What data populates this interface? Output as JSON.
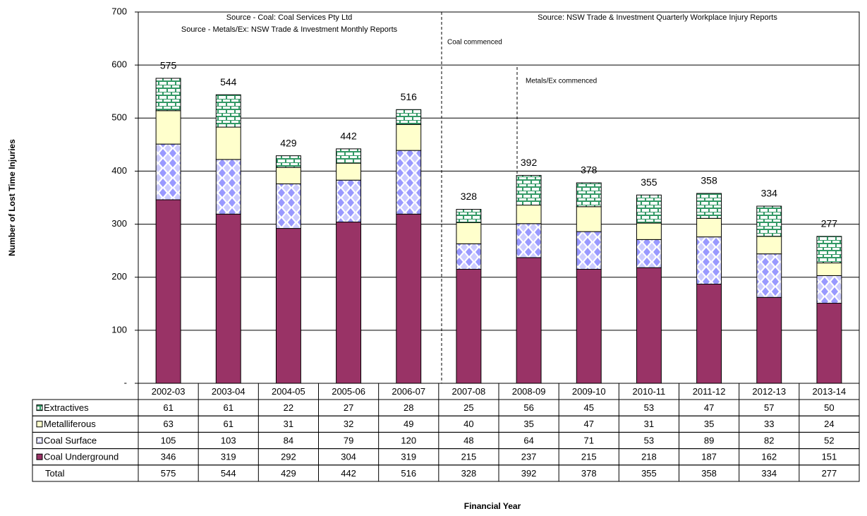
{
  "chart_data": {
    "type": "stacked-bar",
    "y_label": "Number of Lost Time Injuries",
    "x_label": "Financial Year",
    "annotations": [
      "Source - Coal:  Coal Services Pty Ltd",
      "Source - Metals/Ex:  NSW Trade & Investment Monthly Reports",
      "Source:  NSW Trade & Investment  Quarterly Workplace Injury Reports",
      "Coal commenced",
      "Metals/Ex commenced"
    ],
    "categories": [
      "2002-03",
      "2003-04",
      "2004-05",
      "2005-06",
      "2006-07",
      "2007-08",
      "2008-09",
      "2009-10",
      "2010-11",
      "2011-12",
      "2012-13",
      "2013-14"
    ],
    "series": [
      {
        "name": "Coal Underground",
        "color": "#993366",
        "pattern": "solid",
        "values": [
          346,
          319,
          292,
          304,
          319,
          215,
          237,
          215,
          218,
          187,
          162,
          151
        ]
      },
      {
        "name": "Coal Surface",
        "color": "#9999ff",
        "pattern": "diamond",
        "values": [
          105,
          103,
          84,
          79,
          120,
          48,
          64,
          71,
          53,
          89,
          82,
          52
        ]
      },
      {
        "name": "Metalliferous",
        "color": "#ffffcc",
        "pattern": "solid",
        "values": [
          63,
          61,
          31,
          32,
          49,
          40,
          35,
          47,
          31,
          35,
          33,
          24
        ]
      },
      {
        "name": "Extractives",
        "color": "#339966",
        "pattern": "brick",
        "values": [
          61,
          61,
          22,
          27,
          28,
          25,
          56,
          45,
          53,
          47,
          57,
          50
        ]
      }
    ],
    "total_label": "Total",
    "totals": [
      575,
      544,
      429,
      442,
      516,
      328,
      392,
      378,
      355,
      358,
      334,
      277
    ],
    "ylim": [
      0,
      700
    ],
    "yticks": [
      {
        "value": 0,
        "label": "-"
      },
      100,
      200,
      300,
      400,
      500,
      600,
      700
    ],
    "grid": true
  }
}
